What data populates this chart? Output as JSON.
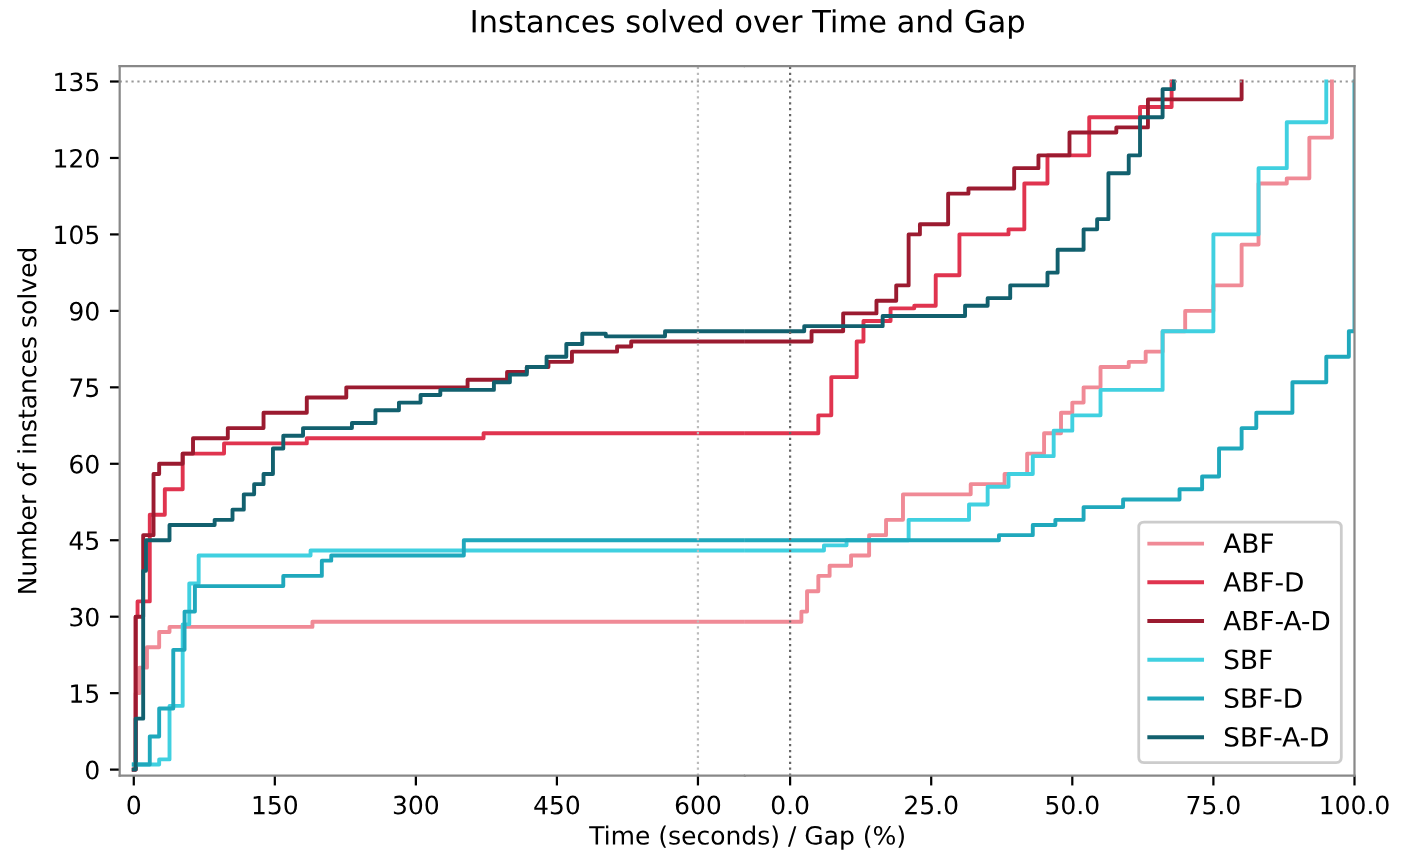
{
  "chart_data": [
    {
      "type": "step",
      "title": "Instances solved over Time and Gap",
      "xlabel": "Time (seconds) / Gap (%)",
      "ylabel": "Number of instances solved",
      "xlim": [
        -15,
        650
      ],
      "xticks": [
        0,
        150,
        300,
        450,
        600
      ],
      "ylim": [
        -1.2,
        138
      ],
      "yticks": [
        0,
        15,
        30,
        45,
        60,
        75,
        90,
        105,
        120,
        135
      ],
      "tick_labels": true,
      "grid": false,
      "legend": false,
      "ref_lines": [
        {
          "axis": "x",
          "value": 600,
          "color": "#bbbbbb",
          "line_style": "dotted"
        },
        {
          "axis": "y",
          "value": 135,
          "color": "#999999",
          "line_style": "dotted"
        }
      ],
      "series": [
        {
          "color": "#f08a96",
          "x": [
            0,
            2,
            6,
            14,
            27,
            38,
            190,
            650
          ],
          "values": [
            0,
            15,
            20,
            24,
            27,
            28,
            29,
            29
          ]
        },
        {
          "color": "#e0344f",
          "x": [
            0,
            2,
            4,
            17,
            33,
            52,
            96,
            184,
            372,
            650
          ],
          "values": [
            0,
            30,
            33,
            50,
            55,
            62,
            64,
            65,
            66,
            66
          ]
        },
        {
          "color": "#9b1b30",
          "x": [
            0,
            2,
            10,
            21,
            27,
            52,
            63,
            100,
            138,
            184,
            226,
            355,
            397,
            418,
            441,
            466,
            514,
            529,
            650
          ],
          "values": [
            0,
            30,
            46,
            58,
            60,
            62,
            65,
            67,
            70,
            73,
            75,
            76.5,
            78,
            79,
            80,
            82,
            83,
            84,
            84
          ]
        },
        {
          "color": "#40d0e0",
          "x": [
            0,
            27,
            38,
            52,
            59,
            69,
            188,
            650
          ],
          "values": [
            1,
            2,
            12.5,
            28.5,
            36.5,
            42,
            43,
            43
          ]
        },
        {
          "color": "#1fa8bc",
          "x": [
            0,
            17,
            27,
            42,
            54,
            65,
            159,
            200,
            210,
            351,
            650
          ],
          "values": [
            1,
            6.5,
            12,
            23.5,
            31,
            36,
            38,
            41,
            42,
            45,
            45
          ]
        },
        {
          "color": "#12606e",
          "x": [
            0,
            2,
            10,
            13,
            38,
            86,
            105,
            117,
            128,
            138,
            148,
            159,
            180,
            232,
            257,
            282,
            305,
            326,
            383,
            400,
            418,
            439,
            460,
            477,
            502,
            565,
            650
          ],
          "values": [
            0,
            10,
            39,
            45,
            48,
            49,
            51,
            54,
            56,
            58,
            63,
            65.5,
            67,
            68,
            70.5,
            72,
            73.5,
            74.5,
            76,
            77.5,
            79,
            81,
            83.5,
            85.5,
            85,
            86,
            86
          ]
        }
      ]
    },
    {
      "type": "step",
      "xlim": [
        -8,
        100
      ],
      "xticks": [
        {
          "value": 0,
          "label": "0.0"
        },
        {
          "value": 25,
          "label": "25.0"
        },
        {
          "value": 50,
          "label": "50.0"
        },
        {
          "value": 75,
          "label": "75.0"
        },
        {
          "value": 100,
          "label": "100.0"
        }
      ],
      "ylim": [
        -1.2,
        138
      ],
      "tick_labels": "x",
      "grid": false,
      "legend": "bottom right",
      "ref_lines": [
        {
          "axis": "x",
          "value": 0,
          "color": "#666666",
          "line_style": "dotted"
        },
        {
          "axis": "y",
          "value": 135,
          "color": "#999999",
          "line_style": "dotted"
        }
      ],
      "series": [
        {
          "name": "ABF",
          "color": "#f08a96",
          "x": [
            -8,
            0,
            2,
            3,
            5,
            7,
            10.8,
            14,
            17,
            20,
            30,
            32,
            38,
            42,
            45,
            48,
            50,
            52,
            55,
            58,
            60,
            63,
            66,
            70,
            75,
            80,
            83,
            88,
            92,
            96
          ],
          "values": [
            29,
            29,
            31,
            35,
            38,
            40,
            42,
            46,
            49,
            54,
            54,
            56,
            58,
            62,
            66,
            70,
            72,
            75,
            79,
            79,
            80,
            82,
            86,
            90,
            95,
            103,
            115,
            116,
            124,
            135
          ]
        },
        {
          "name": "ABF-D",
          "color": "#e0344f",
          "x": [
            -8,
            0,
            2.5,
            5,
            7.3,
            11.8,
            13,
            17.8,
            22,
            25.8,
            30,
            38.7,
            41.5,
            45.6,
            53,
            62,
            67.6
          ],
          "values": [
            66,
            66,
            66,
            69.5,
            77,
            84,
            88,
            90.5,
            91,
            97,
            105,
            106,
            115,
            120.5,
            128,
            130,
            135
          ]
        },
        {
          "name": "ABF-A-D",
          "color": "#9b1b30",
          "x": [
            -8,
            0,
            3.8,
            9.4,
            15.3,
            18.8,
            21,
            23,
            28,
            31.6,
            39.7,
            44,
            49.5,
            57.8,
            63.4,
            80
          ],
          "values": [
            84,
            84,
            86,
            89.5,
            92,
            95,
            105,
            107,
            113,
            114,
            118,
            120.5,
            125,
            126,
            131.5,
            135
          ]
        },
        {
          "name": "SBF",
          "color": "#40d0e0",
          "x": [
            -8,
            0,
            6,
            10,
            21,
            31.7,
            35,
            38.7,
            43,
            46.7,
            50,
            55,
            66,
            75,
            83,
            88,
            95
          ],
          "values": [
            43,
            43,
            44,
            45,
            49,
            52,
            55.5,
            58,
            61.5,
            66.5,
            69.5,
            74.5,
            86,
            105,
            118,
            127,
            135
          ]
        },
        {
          "name": "SBF-D",
          "color": "#1fa8bc",
          "x": [
            -8,
            0,
            37,
            43,
            47,
            52,
            59,
            69,
            73,
            76,
            80,
            82.6,
            89,
            95,
            99,
            100
          ],
          "values": [
            45,
            45,
            46,
            48,
            49,
            51.5,
            53,
            55,
            57.5,
            63,
            67,
            70,
            76,
            81,
            86,
            135
          ]
        },
        {
          "name": "SBF-A-D",
          "color": "#12606e",
          "x": [
            -8,
            0,
            2.5,
            16.4,
            31,
            35,
            39,
            45.6,
            47.4,
            52,
            54.4,
            56.4,
            60,
            62,
            66,
            68
          ],
          "values": [
            86,
            86,
            87,
            89,
            91,
            92.5,
            95,
            97.5,
            102,
            106,
            108,
            117,
            120.5,
            128,
            133.5,
            135
          ]
        }
      ]
    }
  ]
}
